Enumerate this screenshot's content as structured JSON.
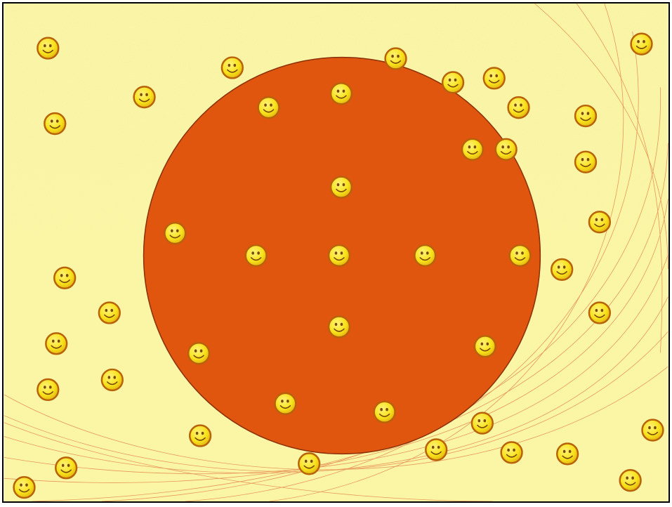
{
  "slide": {
    "background_color": "#fbf6a6",
    "texture_color": "#c8b85a",
    "curve_color": "#e0703a",
    "circle": {
      "fill": "#e0560f",
      "stroke": "#8a2f08"
    },
    "smiley": {
      "icon": "smiley-face-icon",
      "face_color": "#f8e21a",
      "outline_color": "#b8620a",
      "feature_color": "#7a4a0a"
    },
    "smiley_count": 47,
    "smileys_inside_circle": 17,
    "smileys_outside_circle": 30
  }
}
